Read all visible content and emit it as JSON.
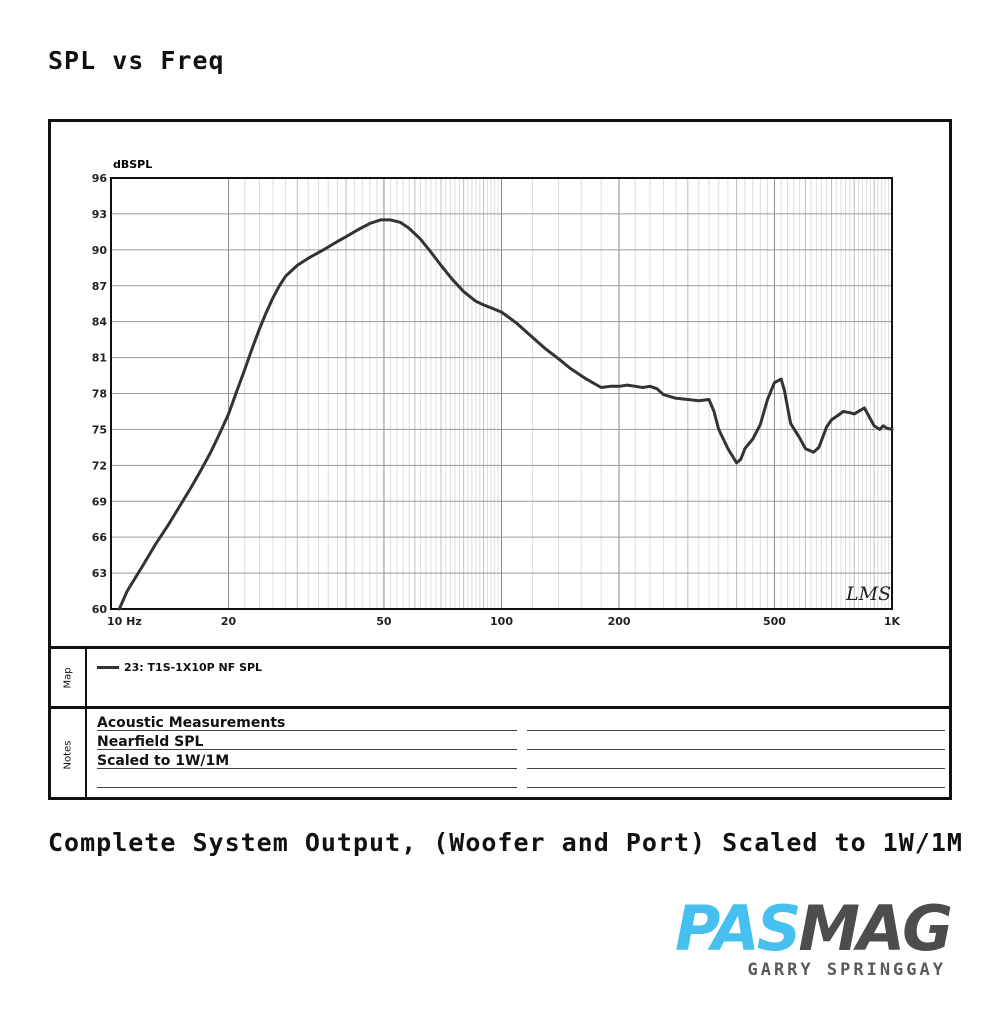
{
  "page": {
    "heading": "SPL vs Freq",
    "caption": "Complete System Output, (Woofer and Port) Scaled to 1W/1M"
  },
  "chart_data": {
    "type": "line",
    "xscale": "log",
    "xlim": [
      10,
      1000
    ],
    "ylim": [
      60,
      96
    ],
    "ylabel": "dBSPL",
    "xlabel": "",
    "grid": true,
    "y_ticks": [
      96,
      93,
      90,
      87,
      84,
      81,
      78,
      75,
      72,
      69,
      66,
      63,
      60
    ],
    "x_ticks": [
      {
        "value": 10,
        "label": "10 Hz"
      },
      {
        "value": 20,
        "label": "20"
      },
      {
        "value": 50,
        "label": "50"
      },
      {
        "value": 100,
        "label": "100"
      },
      {
        "value": 200,
        "label": "200"
      },
      {
        "value": 500,
        "label": "500"
      },
      {
        "value": 1000,
        "label": "1K"
      }
    ],
    "watermark": "LMS",
    "line_color": "#333333",
    "series": [
      {
        "name": "23: T1S-1X10P NF SPL",
        "x": [
          10.5,
          11,
          12,
          13,
          14,
          15,
          16,
          17,
          18,
          19,
          20,
          21,
          22,
          23,
          24,
          25,
          26,
          27,
          28,
          30,
          32,
          35,
          38,
          40,
          43,
          46,
          49,
          52,
          55,
          58,
          62,
          66,
          70,
          75,
          80,
          86,
          90,
          95,
          100,
          105,
          110,
          120,
          130,
          140,
          150,
          165,
          180,
          190,
          200,
          210,
          220,
          230,
          240,
          250,
          260,
          280,
          300,
          320,
          340,
          350,
          360,
          380,
          400,
          410,
          420,
          440,
          460,
          480,
          500,
          520,
          530,
          550,
          580,
          600,
          630,
          650,
          680,
          700,
          730,
          750,
          780,
          800,
          850,
          900,
          930,
          950,
          970,
          1000
        ],
        "y": [
          60.0,
          61.5,
          63.5,
          65.4,
          67.0,
          68.6,
          70.1,
          71.6,
          73.1,
          74.7,
          76.3,
          78.2,
          80.0,
          81.8,
          83.4,
          84.8,
          86.0,
          87.0,
          87.8,
          88.7,
          89.3,
          90.0,
          90.7,
          91.1,
          91.7,
          92.2,
          92.5,
          92.5,
          92.3,
          91.8,
          90.9,
          89.8,
          88.7,
          87.5,
          86.5,
          85.7,
          85.4,
          85.1,
          84.8,
          84.3,
          83.8,
          82.7,
          81.7,
          80.9,
          80.1,
          79.2,
          78.5,
          78.6,
          78.6,
          78.7,
          78.6,
          78.5,
          78.6,
          78.4,
          77.9,
          77.6,
          77.5,
          77.4,
          77.5,
          76.5,
          75.0,
          73.4,
          72.2,
          72.5,
          73.4,
          74.2,
          75.4,
          77.5,
          78.9,
          79.2,
          78.3,
          75.5,
          74.3,
          73.4,
          73.1,
          73.5,
          75.2,
          75.8,
          76.2,
          76.5,
          76.4,
          76.3,
          76.8,
          75.3,
          75.0,
          75.3,
          75.1,
          75.0
        ]
      }
    ]
  },
  "notes": {
    "lines": [
      "Acoustic Measurements",
      "Nearfield SPL",
      "Scaled to 1W/1M"
    ]
  },
  "panels": {
    "map_label": "Map",
    "notes_label": "Notes"
  },
  "logo": {
    "part1": "PAS",
    "part2": "MAG",
    "subtitle": "GARRY SPRINGGAY",
    "color_primary": "#45c0ef",
    "color_secondary": "#4d4d4d"
  }
}
